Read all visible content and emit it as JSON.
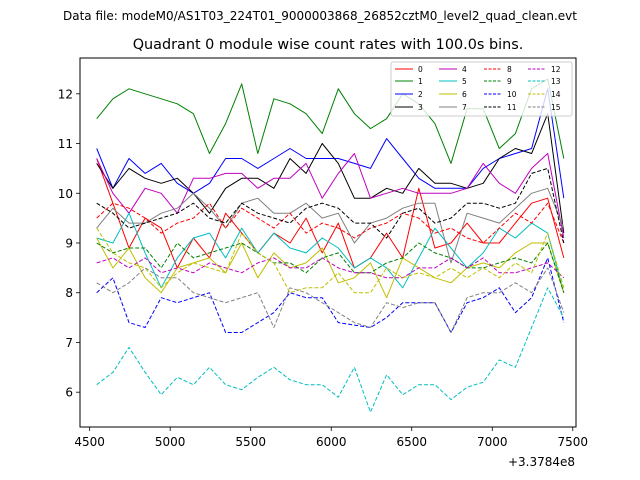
{
  "chart_data": {
    "type": "line",
    "suptitle": "Data file: modeM0/AS1T03_224T01_9000003868_26852cztM0_level2_quad_clean.evt",
    "title": "Quadrant 0 module wise count rates with 100.0s bins.",
    "xlabel": "",
    "ylabel": "",
    "x_offset_label": "+3.3784e8",
    "xlim": [
      4440,
      7520
    ],
    "ylim": [
      5.3,
      12.72
    ],
    "xticks": [
      4500,
      5000,
      5500,
      6000,
      6500,
      7000,
      7500
    ],
    "yticks": [
      6,
      7,
      8,
      9,
      10,
      11,
      12
    ],
    "legend_location": "upper-right",
    "legend_columns": 4,
    "x": [
      4544,
      4644,
      4744,
      4844,
      4944,
      5044,
      5144,
      5244,
      5344,
      5444,
      5544,
      5644,
      5744,
      5844,
      5944,
      6044,
      6144,
      6244,
      6344,
      6444,
      6544,
      6644,
      6744,
      6844,
      6944,
      7044,
      7144,
      7244,
      7344,
      7444
    ],
    "series": [
      {
        "name": "0",
        "color": "#ff0000",
        "dash": "solid",
        "values": [
          10.7,
          9.8,
          8.9,
          9.5,
          9.3,
          8.5,
          9.1,
          8.7,
          9.6,
          9.2,
          8.8,
          9.2,
          9.0,
          9.5,
          8.8,
          9.4,
          8.5,
          8.7,
          9.2,
          8.7,
          10.1,
          8.9,
          9.0,
          9.4,
          9.0,
          9.0,
          9.4,
          9.8,
          9.9,
          8.7
        ]
      },
      {
        "name": "1",
        "color": "#008000",
        "dash": "solid",
        "values": [
          11.5,
          11.9,
          12.1,
          12.0,
          11.9,
          11.8,
          11.6,
          10.8,
          11.4,
          12.2,
          10.8,
          11.9,
          11.8,
          11.6,
          11.2,
          12.1,
          11.6,
          11.3,
          11.5,
          12.0,
          11.8,
          11.4,
          10.6,
          11.7,
          11.7,
          10.9,
          11.2,
          12.1,
          12.3,
          10.7
        ]
      },
      {
        "name": "2",
        "color": "#0000ff",
        "dash": "solid",
        "values": [
          10.9,
          10.1,
          10.7,
          10.4,
          10.6,
          10.2,
          10.0,
          10.2,
          10.7,
          10.7,
          10.5,
          10.7,
          10.9,
          10.7,
          10.7,
          10.7,
          10.6,
          10.5,
          11.1,
          10.7,
          10.3,
          10.1,
          10.1,
          10.1,
          10.5,
          10.7,
          10.8,
          10.9,
          12.1,
          9.9
        ]
      },
      {
        "name": "3",
        "color": "#000000",
        "dash": "solid",
        "values": [
          10.6,
          10.1,
          10.5,
          10.3,
          10.2,
          10.3,
          10.0,
          9.6,
          10.1,
          10.3,
          10.3,
          10.1,
          10.7,
          10.4,
          11.0,
          10.6,
          9.9,
          9.9,
          10.1,
          10.0,
          10.5,
          10.2,
          10.2,
          10.1,
          10.2,
          10.7,
          10.9,
          10.8,
          11.6,
          9.2
        ]
      },
      {
        "name": "4",
        "color": "#bf00bf",
        "dash": "solid",
        "values": [
          10.7,
          10.0,
          9.6,
          10.1,
          10.0,
          9.6,
          10.3,
          10.3,
          10.4,
          10.4,
          10.1,
          10.3,
          10.3,
          10.6,
          9.9,
          10.4,
          10.8,
          9.9,
          10.0,
          10.1,
          10.0,
          10.0,
          10.0,
          10.1,
          10.6,
          10.2,
          10.0,
          10.5,
          10.8,
          9.1
        ]
      },
      {
        "name": "5",
        "color": "#00bfbf",
        "dash": "solid",
        "values": [
          9.1,
          9.0,
          9.6,
          8.8,
          8.1,
          8.7,
          9.1,
          9.2,
          8.7,
          9.3,
          8.8,
          9.2,
          8.9,
          8.8,
          9.1,
          8.9,
          8.5,
          8.7,
          8.5,
          8.1,
          8.7,
          9.3,
          8.9,
          8.5,
          8.8,
          9.3,
          9.1,
          9.4,
          9.2,
          8.0
        ]
      },
      {
        "name": "6",
        "color": "#bfbf00",
        "dash": "solid",
        "values": [
          9.1,
          8.5,
          8.9,
          8.3,
          8.0,
          8.5,
          8.6,
          8.7,
          8.4,
          9.0,
          8.3,
          8.8,
          8.5,
          8.6,
          8.9,
          8.2,
          8.3,
          8.6,
          7.9,
          8.7,
          8.5,
          8.3,
          8.2,
          8.5,
          8.6,
          8.5,
          8.8,
          9.0,
          9.0,
          8.0
        ]
      },
      {
        "name": "7",
        "color": "#808080",
        "dash": "solid",
        "values": [
          9.3,
          9.7,
          9.4,
          9.4,
          9.6,
          9.7,
          10.0,
          9.7,
          9.3,
          9.8,
          9.9,
          9.6,
          9.6,
          9.8,
          9.5,
          9.6,
          9.0,
          9.4,
          9.5,
          9.7,
          9.8,
          9.8,
          8.6,
          9.6,
          9.5,
          9.4,
          9.7,
          10.0,
          10.1,
          9.3
        ]
      },
      {
        "name": "8",
        "color": "#ff0000",
        "dash": "dashed",
        "values": [
          9.5,
          9.8,
          9.7,
          9.5,
          9.2,
          9.4,
          9.5,
          9.8,
          9.3,
          9.7,
          9.5,
          9.3,
          9.6,
          9.2,
          9.4,
          9.3,
          9.1,
          9.3,
          9.4,
          9.6,
          9.5,
          9.2,
          9.3,
          9.1,
          9.0,
          9.3,
          9.6,
          9.4,
          9.8,
          9.0
        ]
      },
      {
        "name": "9",
        "color": "#008000",
        "dash": "dashed",
        "values": [
          9.0,
          8.8,
          8.9,
          8.9,
          8.5,
          9.0,
          8.7,
          8.8,
          8.9,
          9.0,
          8.8,
          8.6,
          8.6,
          8.4,
          8.7,
          8.8,
          8.4,
          8.4,
          8.6,
          8.7,
          9.0,
          8.8,
          8.7,
          8.5,
          8.5,
          8.6,
          8.7,
          8.6,
          9.0,
          8.0
        ]
      },
      {
        "name": "10",
        "color": "#0000ff",
        "dash": "dashed",
        "values": [
          8.0,
          8.3,
          7.4,
          7.3,
          7.9,
          7.8,
          7.9,
          8.0,
          7.2,
          7.2,
          7.4,
          7.6,
          8.0,
          7.9,
          7.9,
          7.4,
          7.35,
          7.3,
          7.5,
          7.8,
          7.8,
          7.8,
          7.2,
          7.8,
          7.9,
          8.1,
          7.6,
          7.9,
          8.7,
          7.4
        ]
      },
      {
        "name": "11",
        "color": "#000000",
        "dash": "dashed",
        "values": [
          9.8,
          9.6,
          9.3,
          9.4,
          9.5,
          9.6,
          9.8,
          9.5,
          9.4,
          9.8,
          9.6,
          9.5,
          9.4,
          9.7,
          9.8,
          9.7,
          9.4,
          9.4,
          9.1,
          9.6,
          9.7,
          9.4,
          9.5,
          9.8,
          9.8,
          9.7,
          9.8,
          10.4,
          10.5,
          9.0
        ]
      },
      {
        "name": "12",
        "color": "#bf00bf",
        "dash": "dashed",
        "values": [
          8.6,
          8.7,
          8.5,
          8.7,
          8.4,
          8.5,
          8.4,
          8.6,
          8.5,
          8.4,
          8.6,
          8.7,
          8.5,
          8.5,
          8.7,
          8.5,
          8.4,
          8.4,
          8.3,
          8.3,
          8.5,
          8.5,
          8.7,
          8.5,
          8.7,
          8.4,
          8.4,
          8.5,
          8.6,
          8.3
        ]
      },
      {
        "name": "13",
        "color": "#00bfbf",
        "dash": "dashed",
        "values": [
          6.15,
          6.4,
          6.9,
          6.4,
          5.95,
          6.3,
          6.15,
          6.5,
          6.15,
          6.05,
          6.3,
          6.5,
          6.25,
          6.15,
          6.15,
          5.9,
          6.5,
          5.6,
          6.35,
          5.95,
          6.15,
          6.15,
          5.85,
          6.1,
          6.2,
          6.65,
          6.5,
          7.3,
          8.1,
          7.5
        ]
      },
      {
        "name": "14",
        "color": "#bfbf00",
        "dash": "dashed",
        "values": [
          9.3,
          8.8,
          8.6,
          8.5,
          8.1,
          8.4,
          8.6,
          8.5,
          8.4,
          9.2,
          8.8,
          8.6,
          8.0,
          8.1,
          8.1,
          8.4,
          8.0,
          8.0,
          8.5,
          8.3,
          8.4,
          8.3,
          8.5,
          8.3,
          8.5,
          8.3,
          8.6,
          8.4,
          9.2,
          8.1
        ]
      },
      {
        "name": "15",
        "color": "#808080",
        "dash": "dashed",
        "values": [
          8.2,
          8.0,
          8.2,
          8.5,
          8.3,
          8.3,
          8.0,
          7.9,
          7.8,
          7.9,
          8.0,
          7.3,
          8.1,
          8.0,
          7.8,
          7.6,
          7.4,
          7.3,
          7.8,
          7.7,
          7.8,
          7.8,
          7.2,
          7.9,
          8.0,
          8.0,
          8.2,
          8.0,
          8.5,
          7.6
        ]
      }
    ]
  }
}
